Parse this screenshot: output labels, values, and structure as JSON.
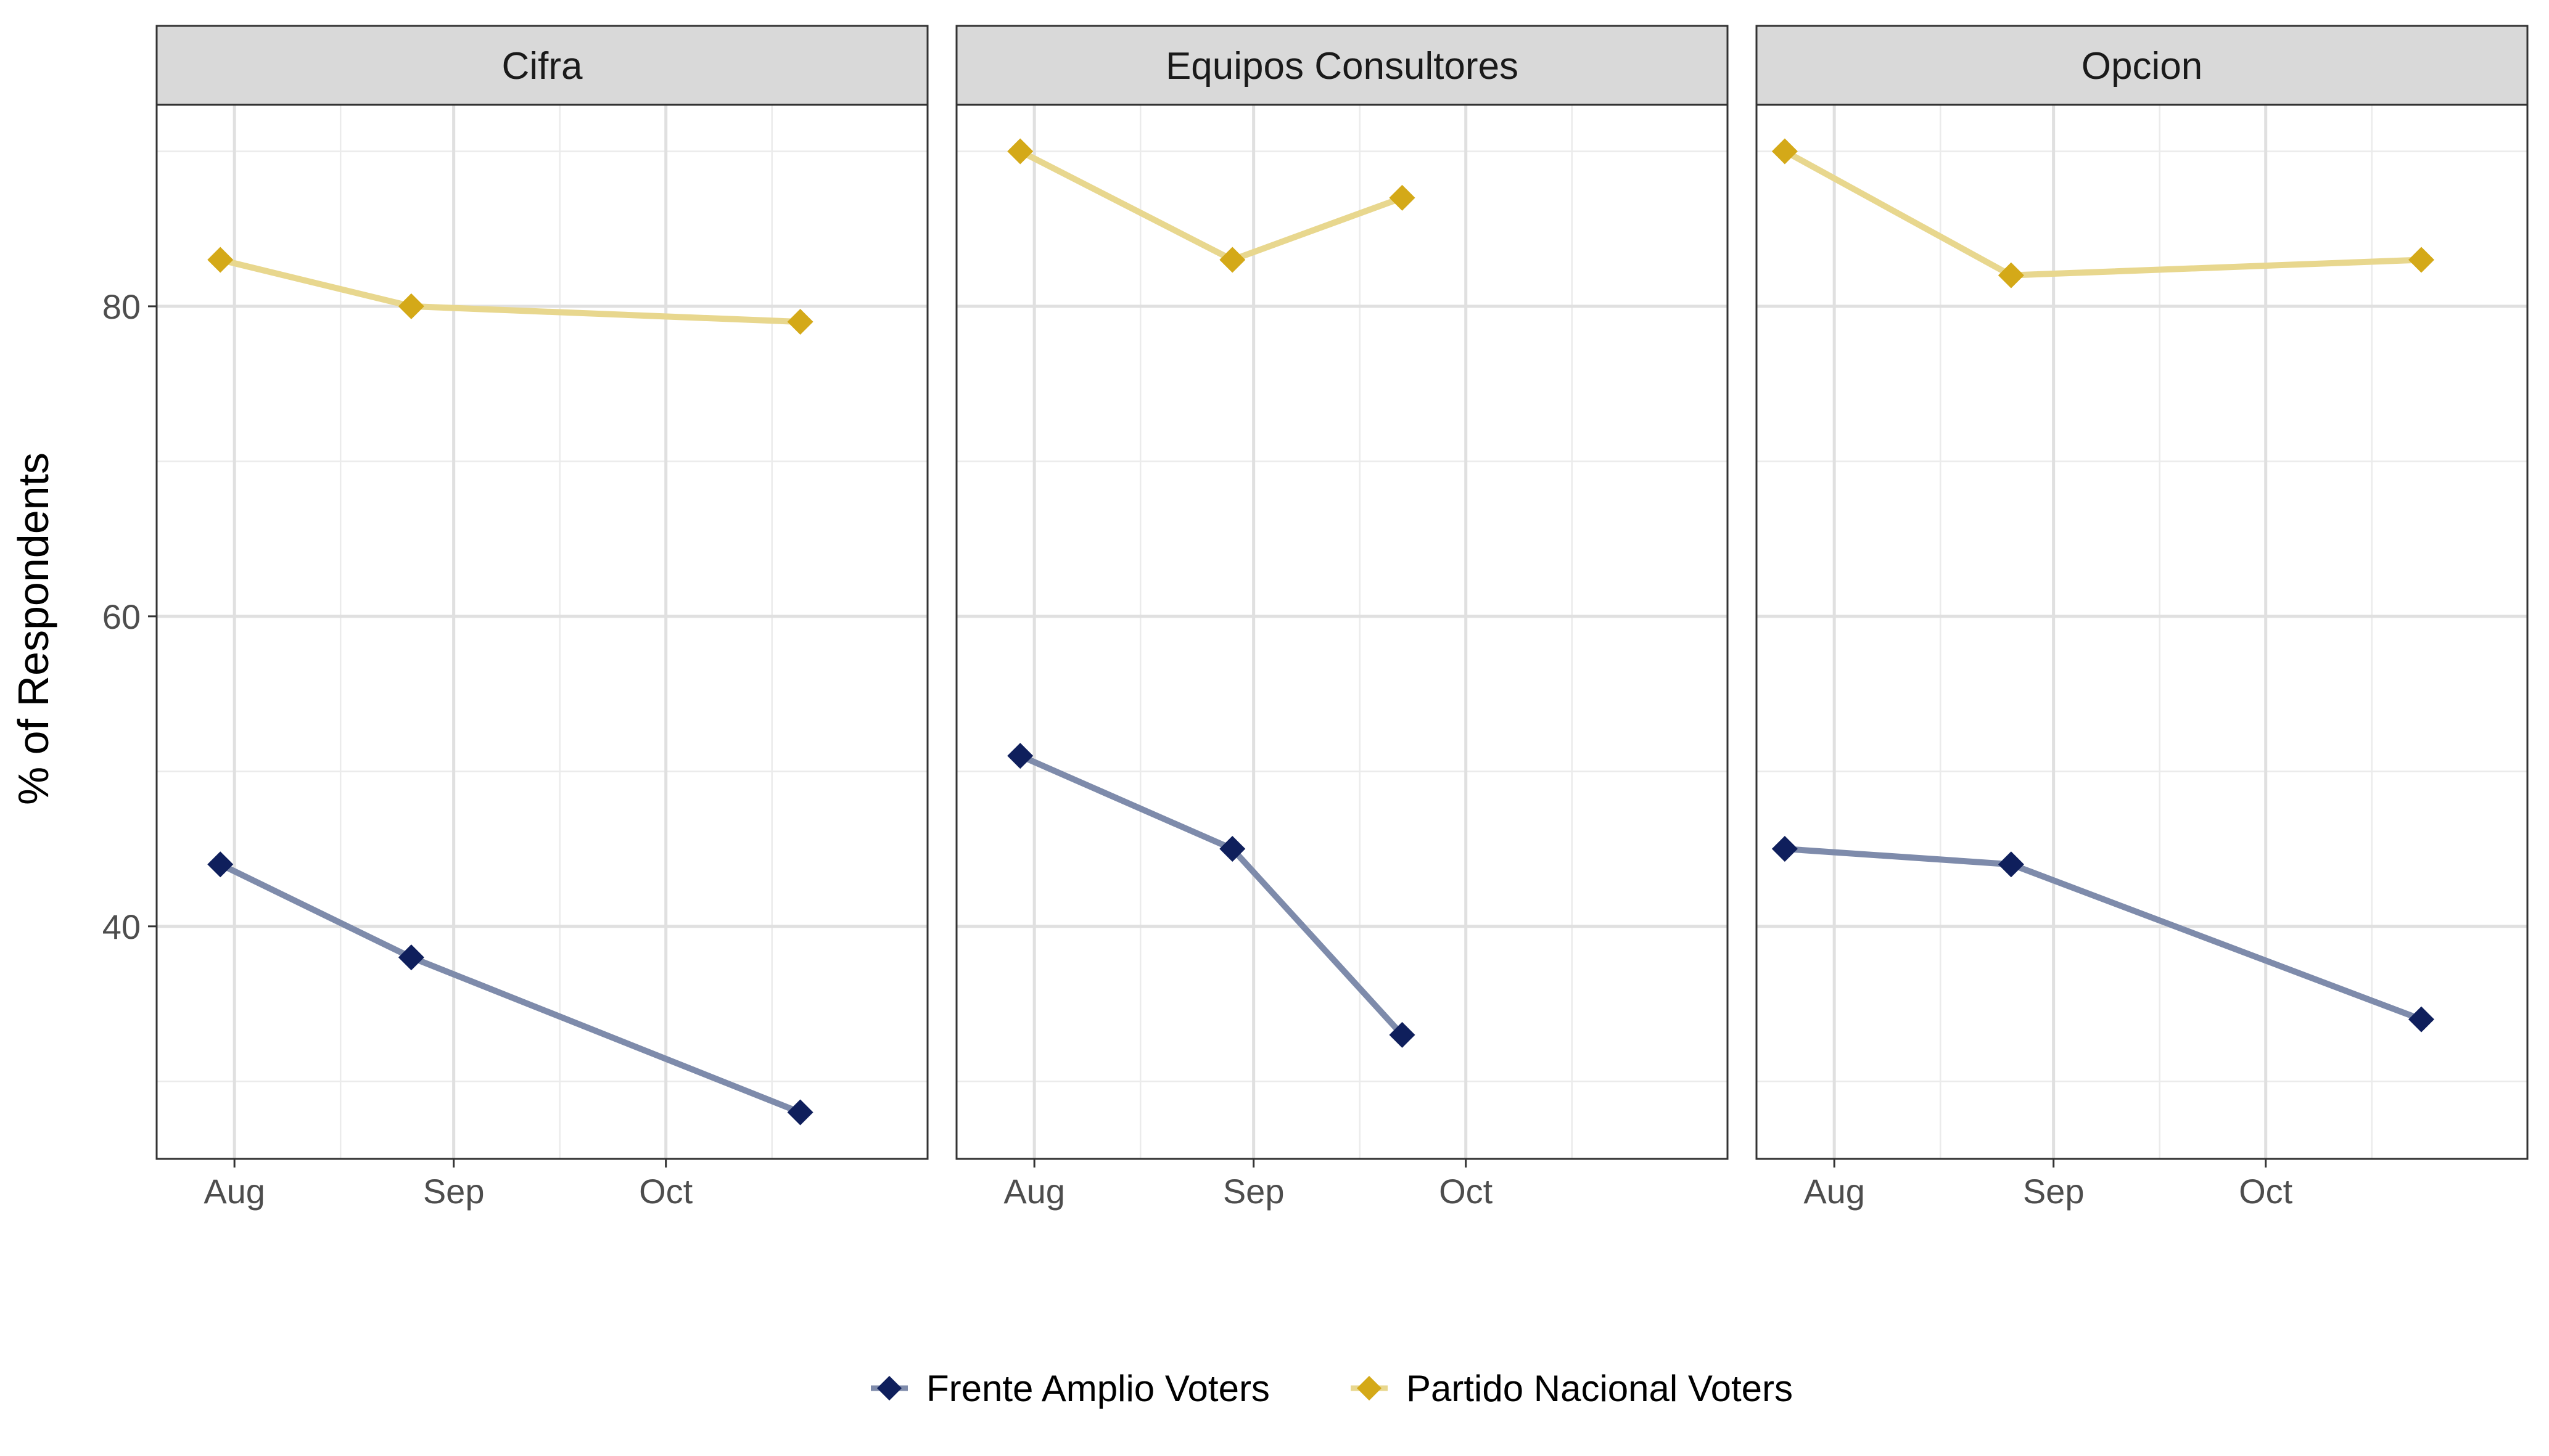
{
  "chart_data": {
    "type": "line",
    "facets": [
      "Cifra",
      "Equipos Consultores",
      "Opcion"
    ],
    "xlabel": "",
    "ylabel": "% of Respondents",
    "x_ticks": [
      {
        "label": "Aug",
        "date": "2019-08-01"
      },
      {
        "label": "Sep",
        "date": "2019-09-01"
      },
      {
        "label": "Oct",
        "date": "2019-10-01"
      }
    ],
    "xlim": [
      "2019-07-21",
      "2019-11-07"
    ],
    "y_ticks": [
      40,
      60,
      80
    ],
    "ylim": [
      25,
      93
    ],
    "grid": true,
    "legend_position": "bottom",
    "series": [
      {
        "name": "Frente Amplio Voters",
        "color": "#0f1f5c",
        "line_color": "#7e8bab",
        "marker": "diamond",
        "points": {
          "Cifra": [
            {
              "x": "2019-07-30",
              "y": 44
            },
            {
              "x": "2019-08-26",
              "y": 38
            },
            {
              "x": "2019-10-20",
              "y": 28
            }
          ],
          "Equipos Consultores": [
            {
              "x": "2019-07-30",
              "y": 51
            },
            {
              "x": "2019-08-29",
              "y": 45
            },
            {
              "x": "2019-09-22",
              "y": 33
            }
          ],
          "Opcion": [
            {
              "x": "2019-07-25",
              "y": 45
            },
            {
              "x": "2019-08-26",
              "y": 44
            },
            {
              "x": "2019-10-23",
              "y": 34
            }
          ]
        }
      },
      {
        "name": "Partido Nacional Voters",
        "color": "#d4a918",
        "line_color": "#e8d78e",
        "marker": "diamond",
        "points": {
          "Cifra": [
            {
              "x": "2019-07-30",
              "y": 83
            },
            {
              "x": "2019-08-26",
              "y": 80
            },
            {
              "x": "2019-10-20",
              "y": 79
            }
          ],
          "Equipos Consultores": [
            {
              "x": "2019-07-30",
              "y": 90
            },
            {
              "x": "2019-08-29",
              "y": 83
            },
            {
              "x": "2019-09-22",
              "y": 87
            }
          ],
          "Opcion": [
            {
              "x": "2019-07-25",
              "y": 90
            },
            {
              "x": "2019-08-26",
              "y": 82
            },
            {
              "x": "2019-10-23",
              "y": 83
            }
          ]
        }
      }
    ]
  }
}
